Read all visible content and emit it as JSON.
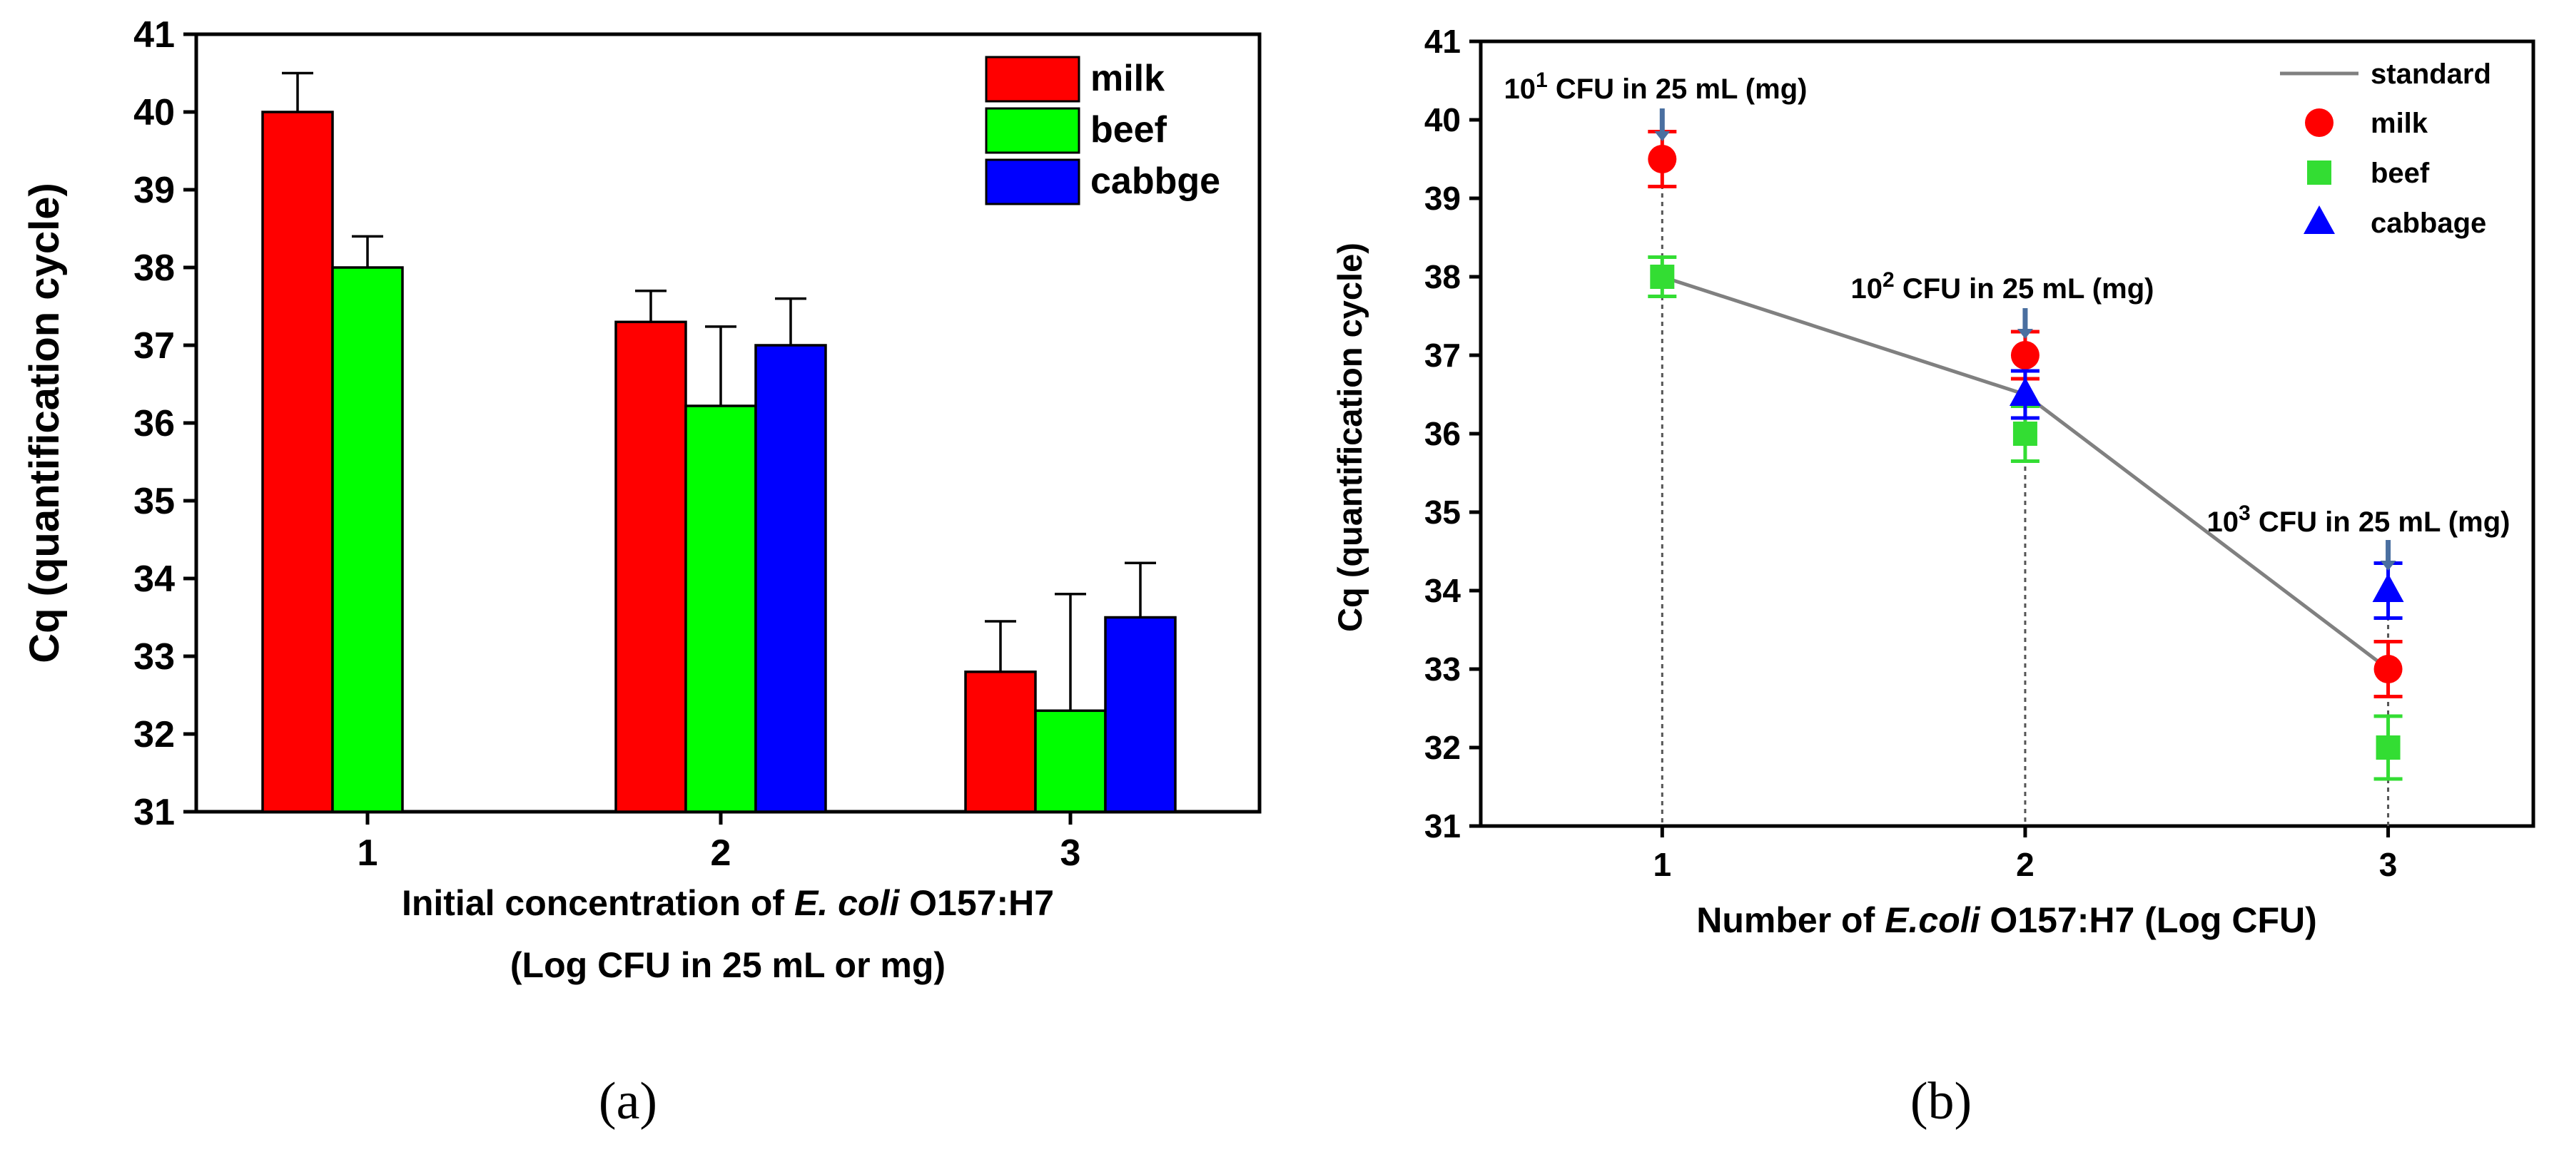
{
  "panel_labels": [
    "(a)",
    "(b)"
  ],
  "chart_data": [
    {
      "type": "bar",
      "xlabel_parts": [
        "Initial concentration of ",
        "E. coli",
        " O157:H7"
      ],
      "xlabel_line2": "(Log CFU in 25 mL or mg)",
      "ylabel": "Cq (quantification cycle)",
      "ylim": [
        31,
        41
      ],
      "yticks": [
        31,
        32,
        33,
        34,
        35,
        36,
        37,
        38,
        39,
        40,
        41
      ],
      "categories": [
        "1",
        "2",
        "3"
      ],
      "legend_position": "top-right",
      "series": [
        {
          "name": "milk",
          "color": "#ff0000",
          "values": [
            40.0,
            37.3,
            32.8
          ],
          "errors": [
            0.5,
            0.4,
            0.65
          ]
        },
        {
          "name": "beef",
          "color": "#00ff00",
          "values": [
            38.0,
            36.22,
            32.3
          ],
          "errors": [
            0.4,
            1.02,
            1.5
          ]
        },
        {
          "name": "cabbge",
          "color": "#0000ff",
          "values": [
            null,
            37.0,
            33.5
          ],
          "errors": [
            null,
            0.6,
            0.7
          ]
        }
      ]
    },
    {
      "type": "scatter",
      "xlabel_parts": [
        "Number of ",
        "E.coli",
        " O157:H7 (Log CFU)"
      ],
      "ylabel": "Cq (quantification cycle)",
      "ylim": [
        31,
        41
      ],
      "xlim": [
        0.5,
        3.4
      ],
      "xticks": [
        1,
        2,
        3
      ],
      "yticks": [
        31,
        32,
        33,
        34,
        35,
        36,
        37,
        38,
        39,
        40,
        41
      ],
      "legend_position": "top-right",
      "standard": {
        "name": "standard",
        "color": "#808080",
        "x": [
          1,
          2,
          3
        ],
        "y": [
          38.0,
          36.5,
          33.0
        ]
      },
      "series": [
        {
          "name": "milk",
          "marker": "circle",
          "color": "#ff0000",
          "x": [
            1,
            2,
            3
          ],
          "y": [
            39.5,
            37.0,
            33.0
          ],
          "errors": [
            0.35,
            0.3,
            0.35
          ]
        },
        {
          "name": "beef",
          "marker": "square",
          "color": "#33dd33",
          "x": [
            1,
            2,
            3
          ],
          "y": [
            38.0,
            36.0,
            32.0
          ],
          "errors": [
            0.25,
            0.35,
            0.4
          ]
        },
        {
          "name": "cabbage",
          "marker": "triangle",
          "color": "#0000ff",
          "x": [
            2,
            3
          ],
          "y": [
            36.5,
            34.0
          ],
          "errors": [
            0.3,
            0.35
          ]
        }
      ],
      "annotations": [
        {
          "base": "10",
          "exp": "1",
          "text": " CFU in 25 mL (mg)",
          "x": 1
        },
        {
          "base": "10",
          "exp": "2",
          "text": " CFU in 25 mL (mg)",
          "x": 2
        },
        {
          "base": "10",
          "exp": "3",
          "text": " CFU in 25 mL (mg)",
          "x": 3
        }
      ]
    }
  ]
}
